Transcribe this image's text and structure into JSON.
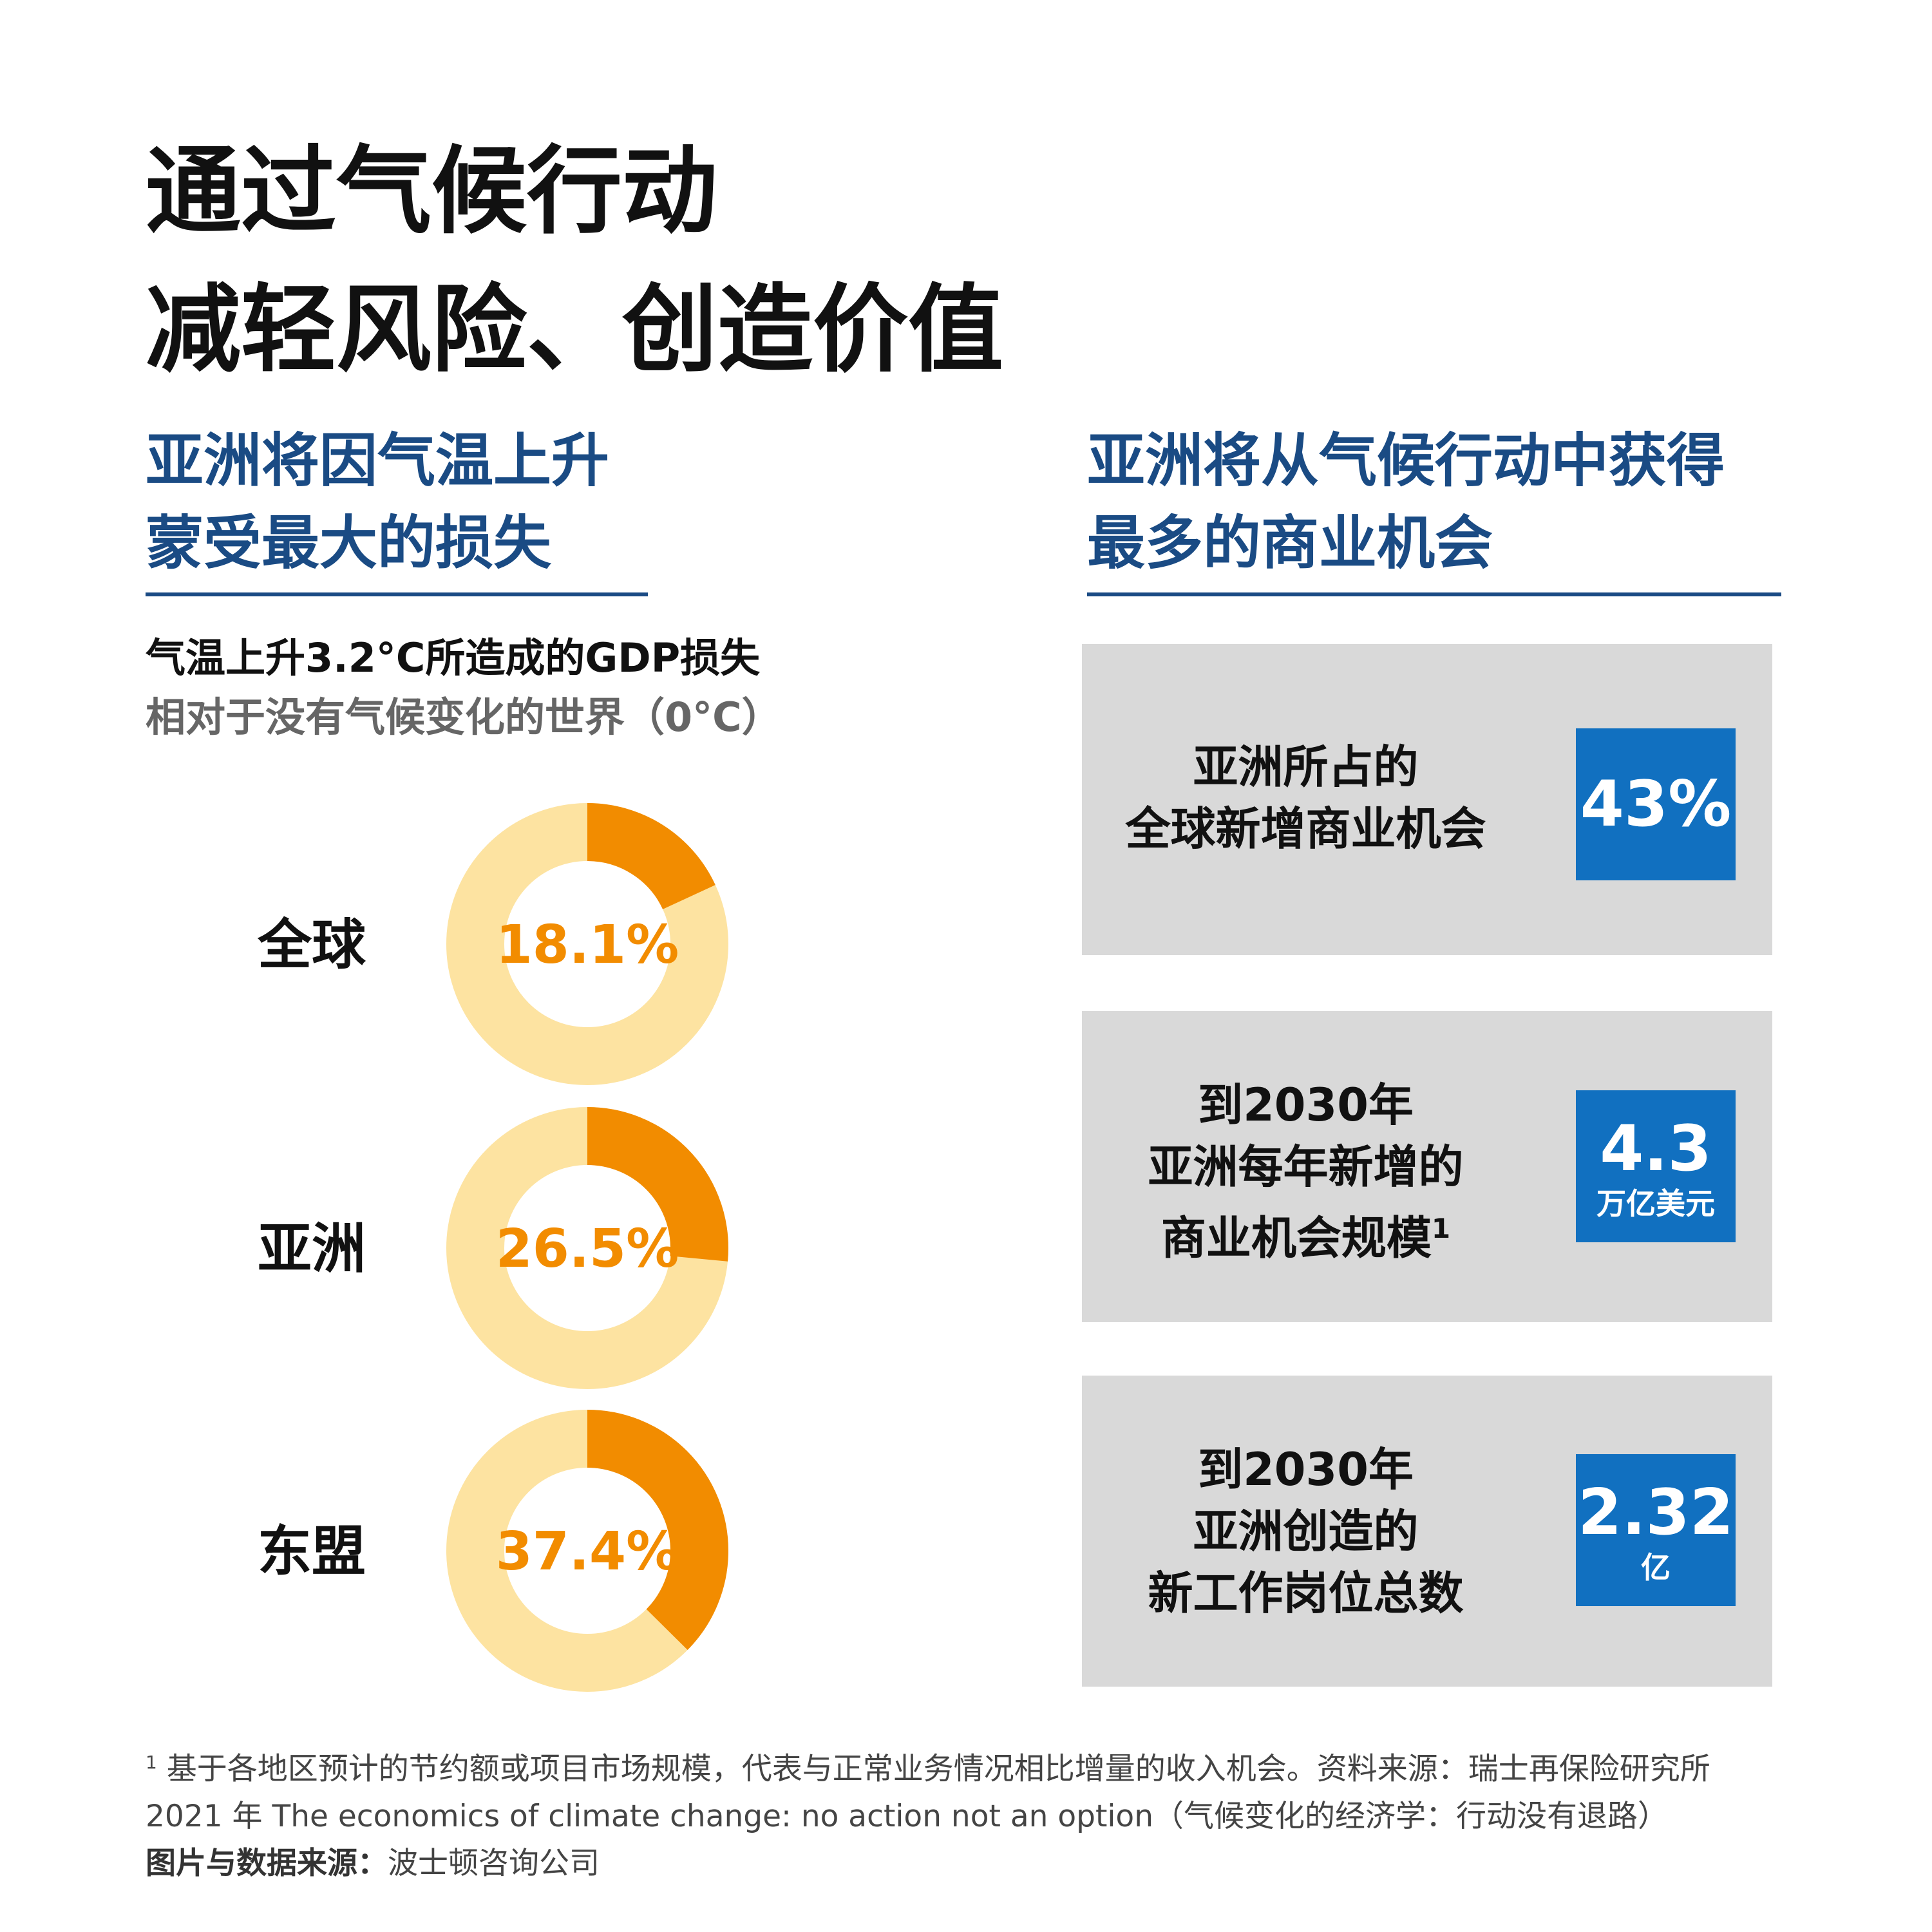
{
  "title": {
    "line1": "通过气候行动",
    "line2": "减轻风险、创造价值"
  },
  "left_section": {
    "heading_line1": "亚洲将因气温上升",
    "heading_line2": "蒙受最大的损失",
    "chart_caption_line1": "气温上升3.2°C所造成的GDP损失",
    "chart_caption_line2": "相对于没有气候变化的世界（0°C）"
  },
  "right_section": {
    "heading_line1": "亚洲将从气候行动中获得",
    "heading_line2": "最多的商业机会"
  },
  "chart_data": {
    "type": "donut",
    "title": "气温上升3.2°C所造成的GDP损失",
    "subtitle": "相对于没有气候变化的世界（0°C）",
    "categories": [
      "全球",
      "亚洲",
      "东盟"
    ],
    "values": [
      18.1,
      26.5,
      37.4
    ],
    "value_labels": [
      "18.1%",
      "26.5%",
      "37.4%"
    ],
    "unit": "%",
    "colors": {
      "value": "#f28c00",
      "remainder": "#fde3a1",
      "label": "#f28c00"
    }
  },
  "cards": [
    {
      "lines": [
        "亚洲所占的",
        "全球新增商业机会"
      ],
      "footnote_mark": "",
      "value": "43%",
      "unit": ""
    },
    {
      "lines": [
        "到2030年",
        "亚洲每年新增的",
        "商业机会规模"
      ],
      "footnote_mark": "1",
      "value": "4.3",
      "unit": "万亿美元"
    },
    {
      "lines": [
        "到2030年",
        "亚洲创造的",
        "新工作岗位总数"
      ],
      "footnote_mark": "",
      "value": "2.32",
      "unit": "亿"
    }
  ],
  "footnote": {
    "mark": "1",
    "line1": " 基于各地区预计的节约额或项目市场规模，代表与正常业务情况相比增量的收入机会。资料来源：瑞士再保险研究所",
    "line2": "2021 年 The economics of climate change: no action not an option（气候变化的经济学：行动没有退路）",
    "source_label": "图片与数据来源：",
    "source_value": "波士顿咨询公司"
  },
  "colors": {
    "navy": "#1a4b84",
    "badge_blue": "#1170c0",
    "card_gray": "#d9d9d9"
  }
}
